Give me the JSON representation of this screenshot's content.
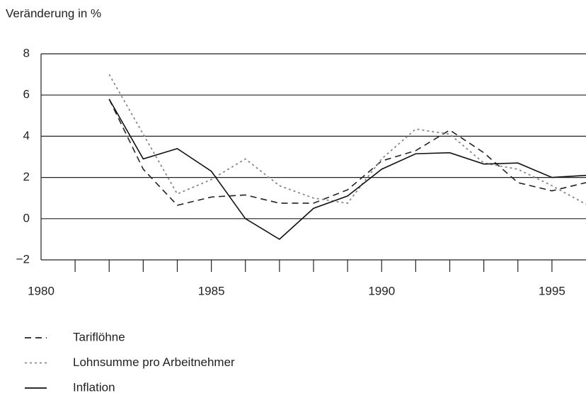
{
  "chart_data": {
    "type": "line",
    "y_label": "Veränderung in %",
    "x": [
      1982,
      1983,
      1984,
      1985,
      1986,
      1987,
      1988,
      1989,
      1990,
      1991,
      1992,
      1993,
      1994,
      1995,
      1996
    ],
    "series": [
      {
        "name": "Tariflöhne",
        "color": "#222222",
        "dash": "dashed",
        "values": [
          5.8,
          2.4,
          0.65,
          1.05,
          1.15,
          0.75,
          0.75,
          1.4,
          2.8,
          3.3,
          4.3,
          3.2,
          1.75,
          1.35,
          1.75
        ]
      },
      {
        "name": "Lohnsumme pro Arbeitnehmer",
        "color": "#888888",
        "dash": "dotted",
        "values": [
          7.0,
          4.1,
          1.2,
          1.9,
          2.9,
          1.6,
          1.0,
          0.75,
          2.9,
          4.35,
          4.1,
          2.7,
          2.4,
          1.6,
          0.7
        ]
      },
      {
        "name": "Inflation",
        "color": "#111111",
        "dash": "solid",
        "values": [
          5.8,
          2.9,
          3.4,
          2.3,
          0,
          -1.0,
          0.5,
          1.1,
          2.4,
          3.15,
          3.2,
          2.65,
          2.7,
          2.0,
          2.1
        ]
      }
    ],
    "xlim": [
      1980,
      1996
    ],
    "xticks": [
      1980,
      1985,
      1990,
      1995
    ],
    "xminor_ticks": [
      1981,
      1982,
      1983,
      1984,
      1985,
      1986,
      1987,
      1988,
      1989,
      1990,
      1991,
      1992,
      1993,
      1994,
      1995
    ],
    "ylim": [
      -2,
      8
    ],
    "yticks": [
      {
        "value": -2,
        "label": "−2"
      },
      0,
      2,
      4,
      6,
      8
    ],
    "grid": true,
    "legend": "bottom-left"
  }
}
